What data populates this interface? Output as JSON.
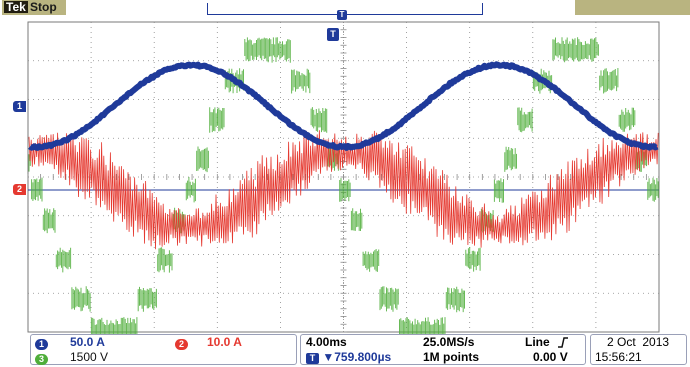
{
  "status": {
    "brand": "Tek",
    "acq_state": "Stop"
  },
  "trigger": {
    "marker_label": "T"
  },
  "channels": [
    {
      "id": "1",
      "scale": "50.0 A",
      "color": "#1f3a9a"
    },
    {
      "id": "2",
      "scale": "10.0 A",
      "color": "#e53930"
    },
    {
      "id": "3",
      "scale": "1500 V",
      "color": "#4fae3a"
    }
  ],
  "timebase": {
    "horizontal_scale": "4.00ms",
    "sample_rate": "25.0MS/s",
    "delay_readout": "▼759.800µs",
    "record_length": "1M points"
  },
  "trigger_readout": {
    "source": "Line",
    "slope_icon": "rising-edge-icon",
    "level": "0.00 V"
  },
  "datetime": {
    "date": "2 Oct  2013",
    "time": "15:56:21"
  },
  "colors": {
    "grid": "#8a8a8a",
    "graticule_bg": "#ffffff",
    "header_strip": "#b9b480",
    "readout_border": "#9aa0b8"
  },
  "display": {
    "horizontal_divisions": 10,
    "vertical_divisions": 8
  }
}
